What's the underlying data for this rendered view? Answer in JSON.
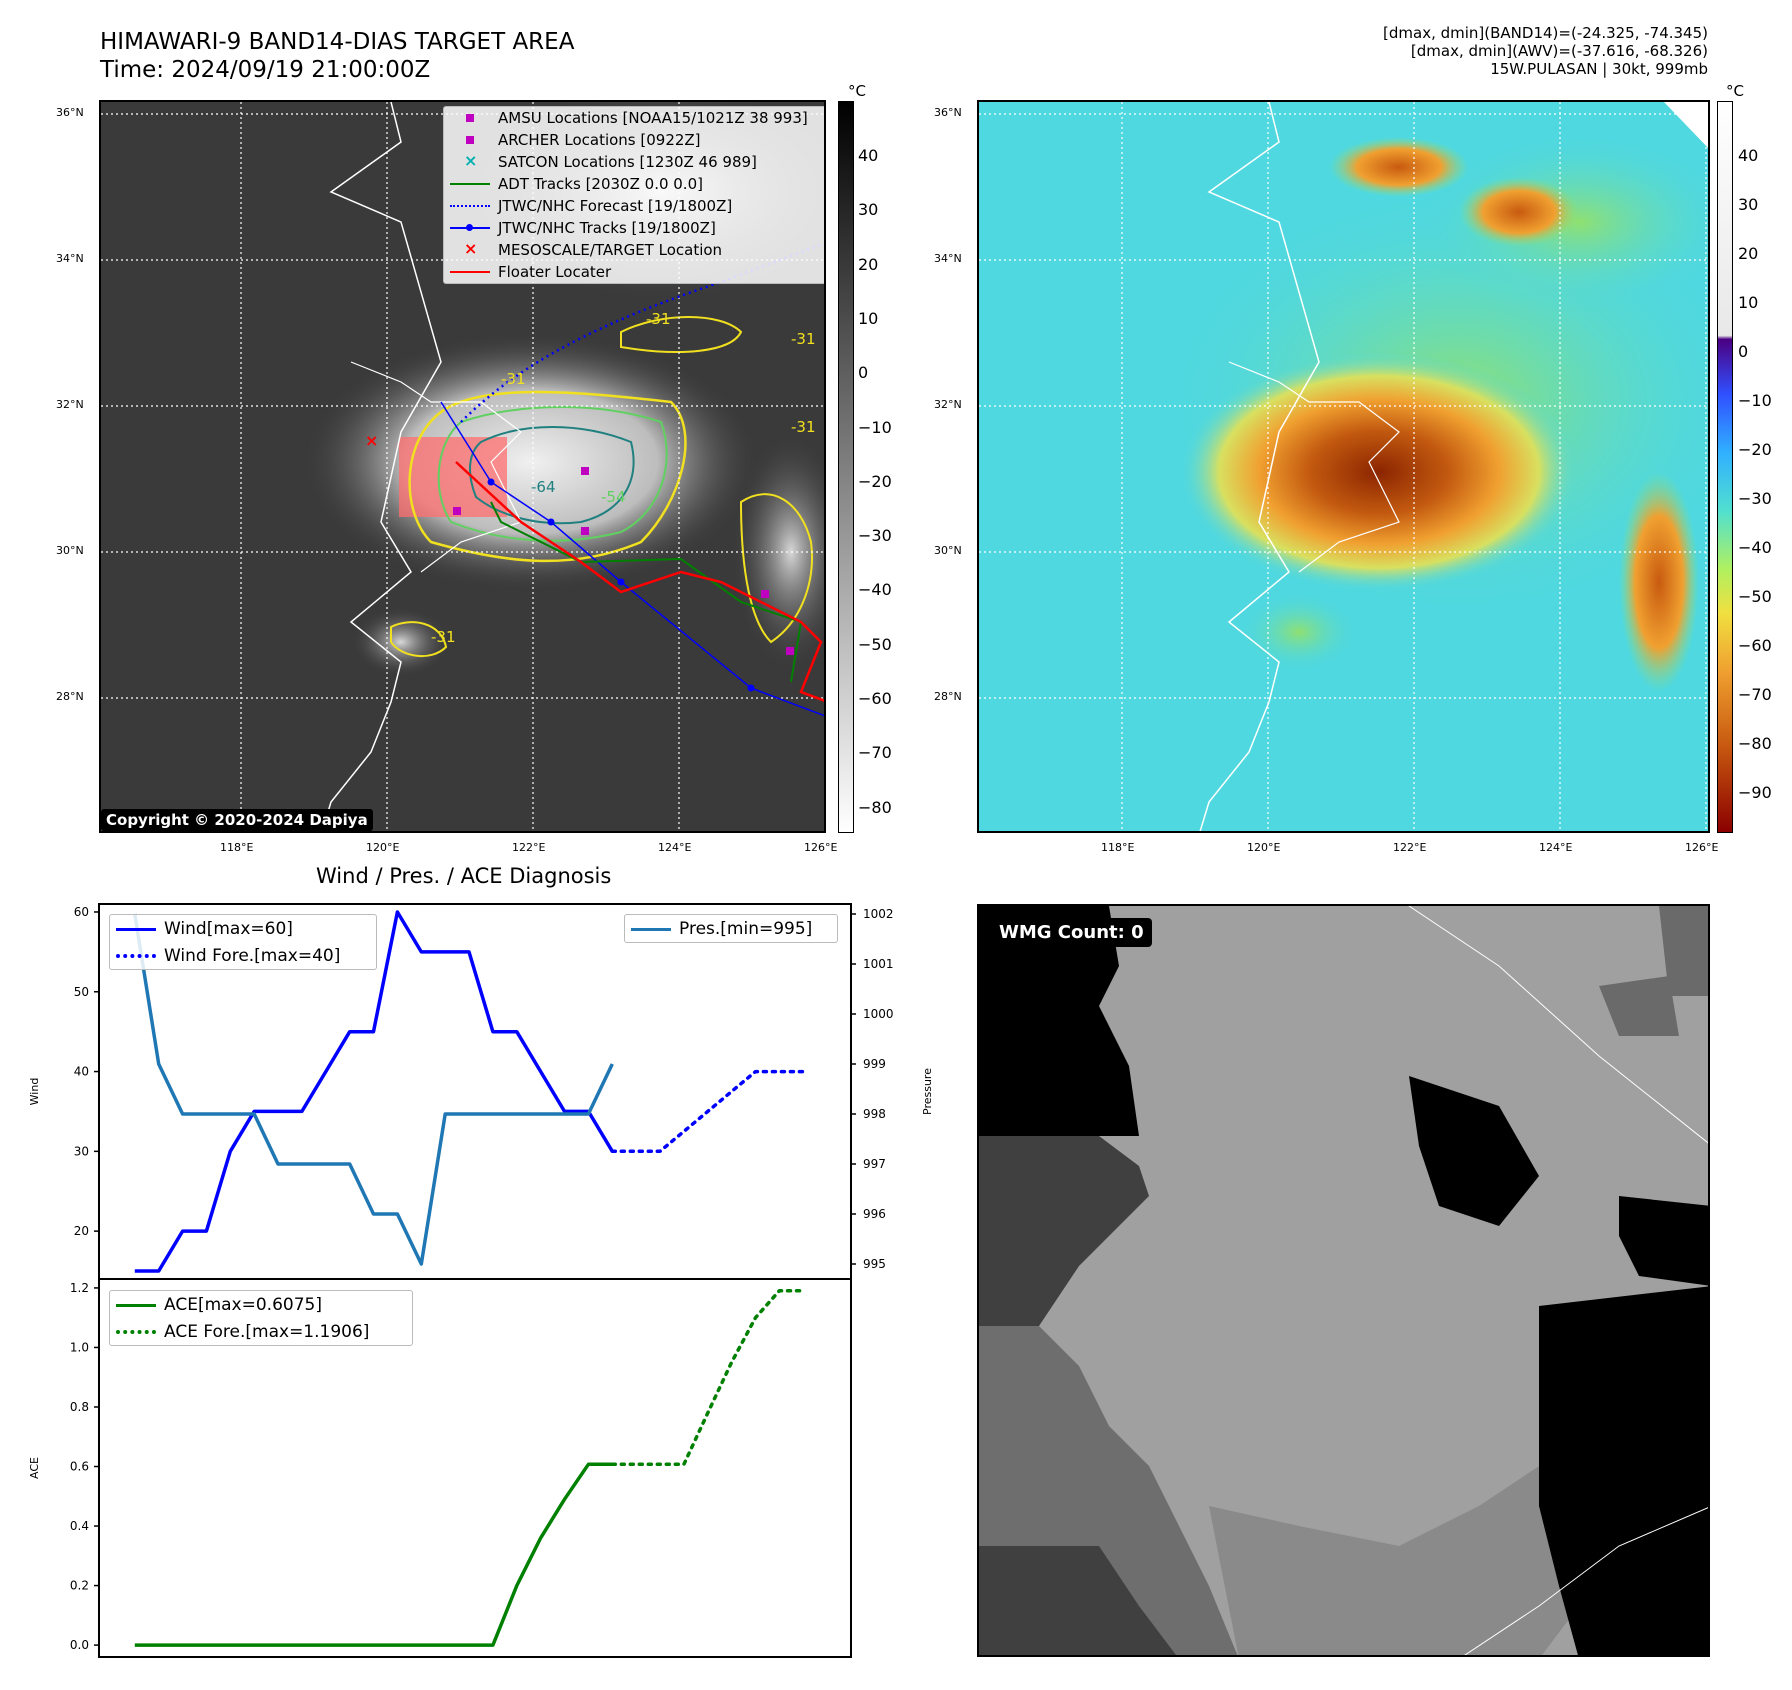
{
  "header": {
    "title_line1": "HIMAWARI-9 BAND14-DIAS TARGET AREA",
    "title_line2": "Time: 2024/09/19 21:00:00Z",
    "info_line1": "[dmax, dmin](BAND14)=(-24.325, -74.345)",
    "info_line2": "[dmax, dmin](AWV)=(-37.616, -68.326)",
    "info_line3": "15W.PULASAN | 30kt, 999mb"
  },
  "maps": {
    "lat_labels": [
      "36°N",
      "34°N",
      "32°N",
      "30°N",
      "28°N"
    ],
    "lon_labels": [
      "118°E",
      "120°E",
      "122°E",
      "124°E",
      "126°E"
    ],
    "copyright": "Copyright © 2020-2024 Dapiya",
    "contour_labels": [
      "-31",
      "-31",
      "-31",
      "-64",
      "-54",
      "-31",
      "-31"
    ],
    "ir_colorbar": {
      "unit": "°C",
      "ticks": [
        "40",
        "30",
        "20",
        "10",
        "0",
        "−10",
        "−20",
        "−30",
        "−40",
        "−50",
        "−60",
        "−70",
        "−80"
      ]
    },
    "awv_colorbar": {
      "unit": "°C",
      "ticks": [
        "40",
        "30",
        "20",
        "10",
        "0",
        "−10",
        "−20",
        "−30",
        "−40",
        "−50",
        "−60",
        "−70",
        "−80",
        "−90"
      ]
    },
    "legend": [
      {
        "label": "AMSU Locations [NOAA15/1021Z 38 993]",
        "color": "#c000c0",
        "style": "square"
      },
      {
        "label": "ARCHER Locations [0922Z]",
        "color": "#c000c0",
        "style": "square"
      },
      {
        "label": "SATCON Locations [1230Z 46 989]",
        "color": "#00b0b0",
        "style": "x"
      },
      {
        "label": "ADT Tracks [2030Z 0.0 0.0]",
        "color": "#008000",
        "style": "line"
      },
      {
        "label": "JTWC/NHC Forecast [19/1800Z]",
        "color": "#0000ff",
        "style": "dotted"
      },
      {
        "label": "JTWC/NHC Tracks [19/1800Z]",
        "color": "#0000ff",
        "style": "line-dot"
      },
      {
        "label": "MESOSCALE/TARGET Location",
        "color": "#ff0000",
        "style": "x"
      },
      {
        "label": "Floater Locater",
        "color": "#ff0000",
        "style": "line"
      }
    ]
  },
  "chart_data": [
    {
      "type": "line",
      "title": "Wind / Pres. / ACE Diagnosis",
      "ylabel": "Wind",
      "ylabel_right": "Pressure",
      "ylim": [
        14,
        61
      ],
      "ylim_right": [
        994.7,
        1002.2
      ],
      "yticks": [
        20,
        30,
        40,
        50,
        60
      ],
      "yticks_right": [
        995,
        996,
        997,
        998,
        999,
        1000,
        1001,
        1002
      ],
      "x": [
        0,
        1,
        2,
        3,
        4,
        5,
        6,
        7,
        8,
        9,
        10,
        11,
        12,
        13,
        14,
        15,
        16,
        17,
        18,
        19,
        20,
        21,
        22,
        23,
        24,
        25,
        26,
        27,
        28,
        29
      ],
      "series": [
        {
          "name": "Wind[max=60]",
          "axis": "left",
          "color": "#0000ff",
          "style": "solid",
          "x": [
            0,
            1,
            2,
            3,
            4,
            5,
            6,
            7,
            8,
            9,
            10,
            11,
            12,
            13,
            14,
            15,
            16,
            17,
            18,
            19,
            20
          ],
          "values": [
            15,
            15,
            20,
            20,
            30,
            35,
            35,
            35,
            40,
            45,
            45,
            60,
            55,
            55,
            55,
            45,
            45,
            40,
            35,
            35,
            30
          ]
        },
        {
          "name": "Wind Fore.[max=40]",
          "axis": "left",
          "color": "#0000ff",
          "style": "dotted",
          "x": [
            20,
            21,
            22,
            23,
            24,
            25,
            26,
            27,
            28
          ],
          "values": [
            30,
            30,
            30,
            32.5,
            35,
            37.5,
            40,
            40,
            40
          ]
        },
        {
          "name": "Pres.[min=995]",
          "axis": "right",
          "color": "#1f77b4",
          "style": "solid",
          "x": [
            0,
            1,
            2,
            3,
            4,
            5,
            6,
            7,
            8,
            9,
            10,
            11,
            12,
            13,
            14,
            15,
            16,
            17,
            18,
            19,
            20
          ],
          "values": [
            1002,
            999,
            998,
            998,
            998,
            998,
            997,
            997,
            997,
            997,
            996,
            996,
            995,
            998,
            998,
            998,
            998,
            998,
            998,
            998,
            999
          ]
        }
      ],
      "legend": [
        {
          "label": "Wind[max=60]",
          "color": "#0000ff",
          "style": "solid"
        },
        {
          "label": "Wind Fore.[max=40]",
          "color": "#0000ff",
          "style": "dotted"
        },
        {
          "label": "Pres.[min=995]",
          "color": "#1f77b4",
          "style": "solid"
        }
      ]
    },
    {
      "type": "line",
      "ylabel": "ACE",
      "ylim": [
        -0.04,
        1.23
      ],
      "yticks": [
        "0.0",
        "0.2",
        "0.4",
        "0.6",
        "0.8",
        "1.0",
        "1.2"
      ],
      "series": [
        {
          "name": "ACE[max=0.6075]",
          "color": "#008000",
          "style": "solid",
          "x": [
            0,
            1,
            2,
            3,
            4,
            5,
            6,
            7,
            8,
            9,
            10,
            11,
            12,
            13,
            14,
            15,
            16,
            17,
            18,
            19,
            20
          ],
          "values": [
            0,
            0,
            0,
            0,
            0,
            0,
            0,
            0,
            0,
            0,
            0,
            0,
            0,
            0,
            0,
            0,
            0.2,
            0.36,
            0.49,
            0.6075,
            0.6075
          ]
        },
        {
          "name": "ACE Fore.[max=1.1906]",
          "color": "#008000",
          "style": "dotted",
          "x": [
            20,
            21,
            22,
            23,
            24,
            25,
            26,
            27,
            28
          ],
          "values": [
            0.6075,
            0.6075,
            0.6075,
            0.6075,
            0.78,
            0.95,
            1.1,
            1.1906,
            1.1906
          ]
        }
      ],
      "legend": [
        {
          "label": "ACE[max=0.6075]",
          "color": "#008000",
          "style": "solid"
        },
        {
          "label": "ACE Fore.[max=1.1906]",
          "color": "#008000",
          "style": "dotted"
        }
      ]
    }
  ],
  "wmg": {
    "label": "WMG Count: 0"
  }
}
